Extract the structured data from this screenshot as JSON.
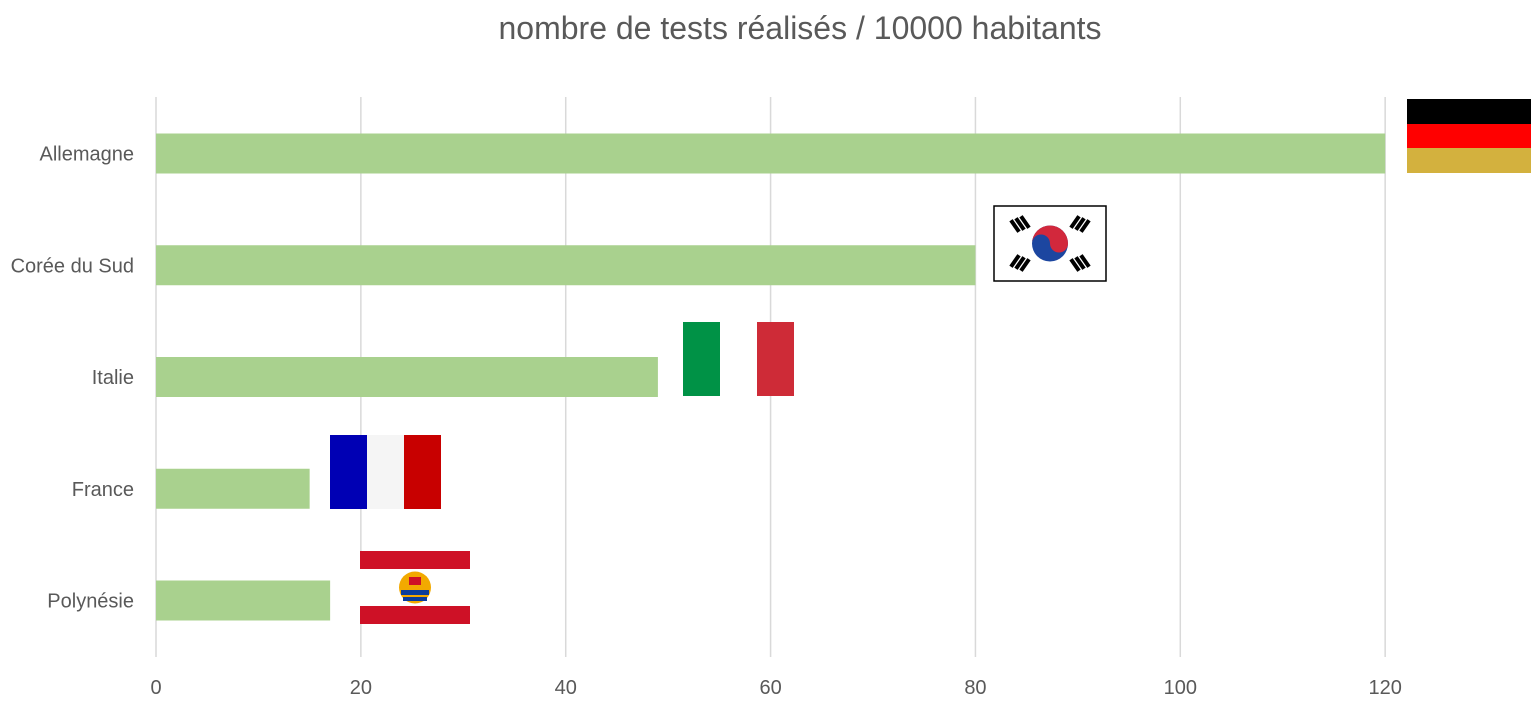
{
  "chart_data": {
    "type": "bar",
    "orientation": "horizontal",
    "title": "nombre de tests réalisés / 10000 habitants",
    "categories": [
      "Allemagne",
      "Corée du Sud",
      "Italie",
      "France",
      "Polynésie"
    ],
    "values": [
      120,
      80,
      49,
      15,
      17
    ],
    "xlim": [
      0,
      130
    ],
    "x_ticks": [
      0,
      20,
      40,
      60,
      80,
      100,
      120
    ],
    "grid": "vertical",
    "legend": "none",
    "bar_color": "#A9D18E",
    "grid_color": "#D9D9D9",
    "flags": [
      {
        "category": "Allemagne",
        "icon": "germany-flag-icon"
      },
      {
        "category": "Corée du Sud",
        "icon": "south-korea-flag-icon"
      },
      {
        "category": "Italie",
        "icon": "italy-flag-icon"
      },
      {
        "category": "France",
        "icon": "france-flag-icon"
      },
      {
        "category": "Polynésie",
        "icon": "french-polynesia-flag-icon"
      }
    ]
  }
}
